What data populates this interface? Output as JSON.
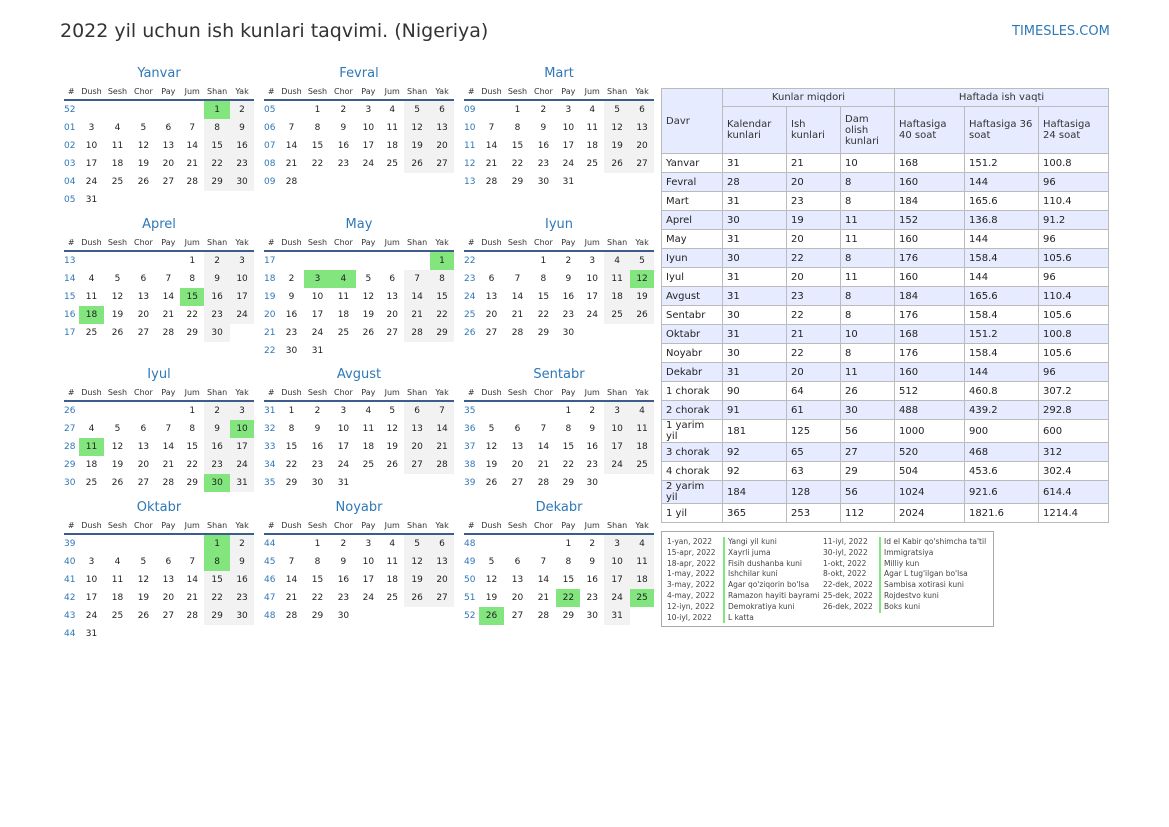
{
  "title": "2022 yil uchun ish kunlari taqvimi. (Nigeriya)",
  "brand": "TIMESLES.COM",
  "weekdays": [
    "#",
    "Dush",
    "Sesh",
    "Chor",
    "Pay",
    "Jum",
    "Shan",
    "Yak"
  ],
  "months": [
    {
      "name": "Yanvar",
      "rows": [
        [
          "52",
          "",
          "",
          "",
          "",
          "",
          "1",
          "2"
        ],
        [
          "01",
          "3",
          "4",
          "5",
          "6",
          "7",
          "8",
          "9"
        ],
        [
          "02",
          "10",
          "11",
          "12",
          "13",
          "14",
          "15",
          "16"
        ],
        [
          "03",
          "17",
          "18",
          "19",
          "20",
          "21",
          "22",
          "23"
        ],
        [
          "04",
          "24",
          "25",
          "26",
          "27",
          "28",
          "29",
          "30"
        ],
        [
          "05",
          "31",
          "",
          "",
          "",
          "",
          "",
          ""
        ]
      ],
      "holidays": [
        "1"
      ]
    },
    {
      "name": "Fevral",
      "rows": [
        [
          "05",
          "",
          "1",
          "2",
          "3",
          "4",
          "5",
          "6"
        ],
        [
          "06",
          "7",
          "8",
          "9",
          "10",
          "11",
          "12",
          "13"
        ],
        [
          "07",
          "14",
          "15",
          "16",
          "17",
          "18",
          "19",
          "20"
        ],
        [
          "08",
          "21",
          "22",
          "23",
          "24",
          "25",
          "26",
          "27"
        ],
        [
          "09",
          "28",
          "",
          "",
          "",
          "",
          "",
          ""
        ]
      ],
      "holidays": []
    },
    {
      "name": "Mart",
      "rows": [
        [
          "09",
          "",
          "1",
          "2",
          "3",
          "4",
          "5",
          "6"
        ],
        [
          "10",
          "7",
          "8",
          "9",
          "10",
          "11",
          "12",
          "13"
        ],
        [
          "11",
          "14",
          "15",
          "16",
          "17",
          "18",
          "19",
          "20"
        ],
        [
          "12",
          "21",
          "22",
          "23",
          "24",
          "25",
          "26",
          "27"
        ],
        [
          "13",
          "28",
          "29",
          "30",
          "31",
          "",
          "",
          ""
        ]
      ],
      "holidays": []
    },
    {
      "name": "Aprel",
      "rows": [
        [
          "13",
          "",
          "",
          "",
          "",
          "1",
          "2",
          "3"
        ],
        [
          "14",
          "4",
          "5",
          "6",
          "7",
          "8",
          "9",
          "10"
        ],
        [
          "15",
          "11",
          "12",
          "13",
          "14",
          "15",
          "16",
          "17"
        ],
        [
          "16",
          "18",
          "19",
          "20",
          "21",
          "22",
          "23",
          "24"
        ],
        [
          "17",
          "25",
          "26",
          "27",
          "28",
          "29",
          "30",
          ""
        ]
      ],
      "holidays": [
        "15",
        "18"
      ]
    },
    {
      "name": "May",
      "rows": [
        [
          "17",
          "",
          "",
          "",
          "",
          "",
          "",
          "1"
        ],
        [
          "18",
          "2",
          "3",
          "4",
          "5",
          "6",
          "7",
          "8"
        ],
        [
          "19",
          "9",
          "10",
          "11",
          "12",
          "13",
          "14",
          "15"
        ],
        [
          "20",
          "16",
          "17",
          "18",
          "19",
          "20",
          "21",
          "22"
        ],
        [
          "21",
          "23",
          "24",
          "25",
          "26",
          "27",
          "28",
          "29"
        ],
        [
          "22",
          "30",
          "31",
          "",
          "",
          "",
          "",
          ""
        ]
      ],
      "holidays": [
        "1",
        "3",
        "4"
      ]
    },
    {
      "name": "Iyun",
      "rows": [
        [
          "22",
          "",
          "",
          "1",
          "2",
          "3",
          "4",
          "5"
        ],
        [
          "23",
          "6",
          "7",
          "8",
          "9",
          "10",
          "11",
          "12"
        ],
        [
          "24",
          "13",
          "14",
          "15",
          "16",
          "17",
          "18",
          "19"
        ],
        [
          "25",
          "20",
          "21",
          "22",
          "23",
          "24",
          "25",
          "26"
        ],
        [
          "26",
          "27",
          "28",
          "29",
          "30",
          "",
          "",
          ""
        ]
      ],
      "holidays": [
        "12"
      ]
    },
    {
      "name": "Iyul",
      "rows": [
        [
          "26",
          "",
          "",
          "",
          "",
          "1",
          "2",
          "3"
        ],
        [
          "27",
          "4",
          "5",
          "6",
          "7",
          "8",
          "9",
          "10"
        ],
        [
          "28",
          "11",
          "12",
          "13",
          "14",
          "15",
          "16",
          "17"
        ],
        [
          "29",
          "18",
          "19",
          "20",
          "21",
          "22",
          "23",
          "24"
        ],
        [
          "30",
          "25",
          "26",
          "27",
          "28",
          "29",
          "30",
          "31"
        ]
      ],
      "holidays": [
        "10",
        "11",
        "30"
      ]
    },
    {
      "name": "Avgust",
      "rows": [
        [
          "31",
          "1",
          "2",
          "3",
          "4",
          "5",
          "6",
          "7"
        ],
        [
          "32",
          "8",
          "9",
          "10",
          "11",
          "12",
          "13",
          "14"
        ],
        [
          "33",
          "15",
          "16",
          "17",
          "18",
          "19",
          "20",
          "21"
        ],
        [
          "34",
          "22",
          "23",
          "24",
          "25",
          "26",
          "27",
          "28"
        ],
        [
          "35",
          "29",
          "30",
          "31",
          "",
          "",
          "",
          ""
        ]
      ],
      "holidays": []
    },
    {
      "name": "Sentabr",
      "rows": [
        [
          "35",
          "",
          "",
          "",
          "1",
          "2",
          "3",
          "4"
        ],
        [
          "36",
          "5",
          "6",
          "7",
          "8",
          "9",
          "10",
          "11"
        ],
        [
          "37",
          "12",
          "13",
          "14",
          "15",
          "16",
          "17",
          "18"
        ],
        [
          "38",
          "19",
          "20",
          "21",
          "22",
          "23",
          "24",
          "25"
        ],
        [
          "39",
          "26",
          "27",
          "28",
          "29",
          "30",
          "",
          ""
        ]
      ],
      "holidays": []
    },
    {
      "name": "Oktabr",
      "rows": [
        [
          "39",
          "",
          "",
          "",
          "",
          "",
          "1",
          "2"
        ],
        [
          "40",
          "3",
          "4",
          "5",
          "6",
          "7",
          "8",
          "9"
        ],
        [
          "41",
          "10",
          "11",
          "12",
          "13",
          "14",
          "15",
          "16"
        ],
        [
          "42",
          "17",
          "18",
          "19",
          "20",
          "21",
          "22",
          "23"
        ],
        [
          "43",
          "24",
          "25",
          "26",
          "27",
          "28",
          "29",
          "30"
        ],
        [
          "44",
          "31",
          "",
          "",
          "",
          "",
          "",
          ""
        ]
      ],
      "holidays": [
        "1",
        "8"
      ]
    },
    {
      "name": "Noyabr",
      "rows": [
        [
          "44",
          "",
          "1",
          "2",
          "3",
          "4",
          "5",
          "6"
        ],
        [
          "45",
          "7",
          "8",
          "9",
          "10",
          "11",
          "12",
          "13"
        ],
        [
          "46",
          "14",
          "15",
          "16",
          "17",
          "18",
          "19",
          "20"
        ],
        [
          "47",
          "21",
          "22",
          "23",
          "24",
          "25",
          "26",
          "27"
        ],
        [
          "48",
          "28",
          "29",
          "30",
          "",
          "",
          "",
          ""
        ]
      ],
      "holidays": []
    },
    {
      "name": "Dekabr",
      "rows": [
        [
          "48",
          "",
          "",
          "",
          "1",
          "2",
          "3",
          "4"
        ],
        [
          "49",
          "5",
          "6",
          "7",
          "8",
          "9",
          "10",
          "11"
        ],
        [
          "50",
          "12",
          "13",
          "14",
          "15",
          "16",
          "17",
          "18"
        ],
        [
          "51",
          "19",
          "20",
          "21",
          "22",
          "23",
          "24",
          "25"
        ],
        [
          "52",
          "26",
          "27",
          "28",
          "29",
          "30",
          "31",
          ""
        ]
      ],
      "holidays": [
        "22",
        "25",
        "26"
      ]
    }
  ],
  "stats": {
    "header_period": "Davr",
    "header_days": "Kunlar miqdori",
    "header_hours": "Haftada ish vaqti",
    "subheaders": [
      "Kalendar kunlari",
      "Ish kunlari",
      "Dam olish kunlari",
      "Haftasiga 40 soat",
      "Haftasiga 36 soat",
      "Haftasiga 24 soat"
    ],
    "rows": [
      [
        "Yanvar",
        "31",
        "21",
        "10",
        "168",
        "151.2",
        "100.8"
      ],
      [
        "Fevral",
        "28",
        "20",
        "8",
        "160",
        "144",
        "96"
      ],
      [
        "Mart",
        "31",
        "23",
        "8",
        "184",
        "165.6",
        "110.4"
      ],
      [
        "Aprel",
        "30",
        "19",
        "11",
        "152",
        "136.8",
        "91.2"
      ],
      [
        "May",
        "31",
        "20",
        "11",
        "160",
        "144",
        "96"
      ],
      [
        "Iyun",
        "30",
        "22",
        "8",
        "176",
        "158.4",
        "105.6"
      ],
      [
        "Iyul",
        "31",
        "20",
        "11",
        "160",
        "144",
        "96"
      ],
      [
        "Avgust",
        "31",
        "23",
        "8",
        "184",
        "165.6",
        "110.4"
      ],
      [
        "Sentabr",
        "30",
        "22",
        "8",
        "176",
        "158.4",
        "105.6"
      ],
      [
        "Oktabr",
        "31",
        "21",
        "10",
        "168",
        "151.2",
        "100.8"
      ],
      [
        "Noyabr",
        "30",
        "22",
        "8",
        "176",
        "158.4",
        "105.6"
      ],
      [
        "Dekabr",
        "31",
        "20",
        "11",
        "160",
        "144",
        "96"
      ],
      [
        "1 chorak",
        "90",
        "64",
        "26",
        "512",
        "460.8",
        "307.2"
      ],
      [
        "2 chorak",
        "91",
        "61",
        "30",
        "488",
        "439.2",
        "292.8"
      ],
      [
        "1 yarim yil",
        "181",
        "125",
        "56",
        "1000",
        "900",
        "600"
      ],
      [
        "3 chorak",
        "92",
        "65",
        "27",
        "520",
        "468",
        "312"
      ],
      [
        "4 chorak",
        "92",
        "63",
        "29",
        "504",
        "453.6",
        "302.4"
      ],
      [
        "2 yarim yil",
        "184",
        "128",
        "56",
        "1024",
        "921.6",
        "614.4"
      ],
      [
        "1 yil",
        "365",
        "253",
        "112",
        "2024",
        "1821.6",
        "1214.4"
      ]
    ]
  },
  "holidays_list": [
    [
      [
        "1-yan, 2022",
        "Yangi yil kuni"
      ],
      [
        "15-apr, 2022",
        "Xayrli juma"
      ],
      [
        "18-apr, 2022",
        "Fisih dushanba kuni"
      ],
      [
        "1-may, 2022",
        "Ishchilar kuni"
      ],
      [
        "3-may, 2022",
        "Agar qo'ziqorin bo'lsa"
      ],
      [
        "4-may, 2022",
        "Ramazon hayiti bayrami"
      ],
      [
        "12-iyn, 2022",
        "Demokratiya kuni"
      ],
      [
        "10-iyl, 2022",
        "L katta"
      ]
    ],
    [
      [
        "11-iyl, 2022",
        "Id el Kabir qo'shimcha ta'til"
      ],
      [
        "30-iyl, 2022",
        "Immigratsiya"
      ],
      [
        "1-okt, 2022",
        "Milliy kun"
      ],
      [
        "8-okt, 2022",
        "Agar L tug'ilgan bo'lsa"
      ],
      [
        "22-dek, 2022",
        "Sambisa xotirasi kuni"
      ],
      [
        "25-dek, 2022",
        "Rojdestvo kuni"
      ],
      [
        "26-dek, 2022",
        "Boks kuni"
      ]
    ]
  ]
}
